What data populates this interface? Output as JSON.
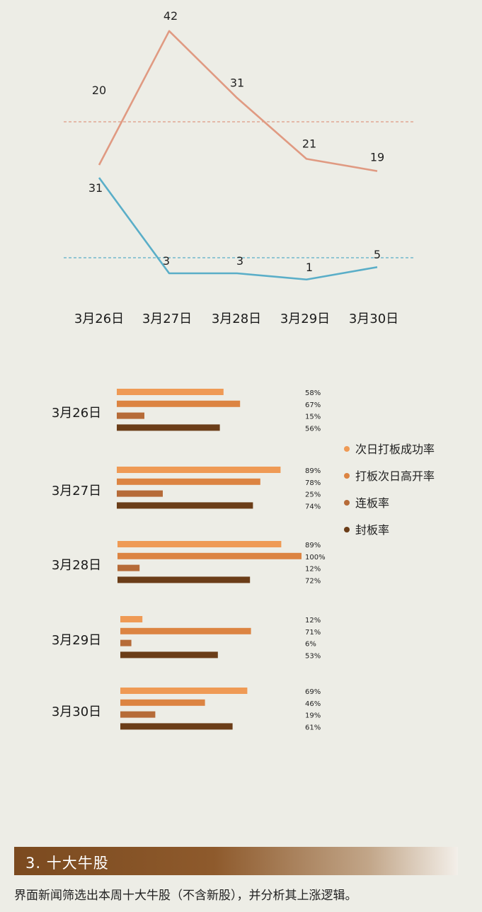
{
  "chart_data": [
    {
      "type": "line",
      "categories": [
        "3月26日",
        "3月27日",
        "3月28日",
        "3月29日",
        "3月30日"
      ],
      "series": [
        {
          "values": [
            20,
            42,
            31,
            21,
            19
          ],
          "color": "#e09a82",
          "reference_line": "dashed"
        },
        {
          "values": [
            31,
            3,
            3,
            1,
            5
          ],
          "color": "#5aaec8",
          "reference_line": "dashed"
        }
      ],
      "title": "",
      "xlabel": "",
      "ylabel": "",
      "grid": false
    },
    {
      "type": "bar",
      "orientation": "horizontal",
      "categories": [
        "3月26日",
        "3月27日",
        "3月28日",
        "3月29日",
        "3月30日"
      ],
      "series": [
        {
          "name": "次日打板成功率",
          "color": "#ef9a55",
          "values": [
            58,
            89,
            89,
            12,
            69
          ]
        },
        {
          "name": "打板次日高开率",
          "color": "#dc8442",
          "values": [
            67,
            78,
            100,
            71,
            46
          ]
        },
        {
          "name": "连板率",
          "color": "#b66b38",
          "values": [
            15,
            25,
            12,
            6,
            19
          ]
        },
        {
          "name": "封板率",
          "color": "#6b3d18",
          "values": [
            56,
            74,
            72,
            53,
            61
          ]
        }
      ],
      "value_labels": [
        [
          "58%",
          "67%",
          "15%",
          "56%"
        ],
        [
          "89%",
          "78%",
          "25%",
          "74%"
        ],
        [
          "89%",
          "100%",
          "12%",
          "72%"
        ],
        [
          "12%",
          "71%",
          "6%",
          "53%"
        ],
        [
          "69%",
          "46%",
          "19%",
          "61%"
        ]
      ],
      "xlim": [
        0,
        100
      ],
      "legend": "right",
      "title": "",
      "xlabel": "",
      "ylabel": ""
    }
  ],
  "section": {
    "title": "3. 十大牛股",
    "description": "界面新闻筛选出本周十大牛股（不含新股），并分析其上涨逻辑。"
  }
}
